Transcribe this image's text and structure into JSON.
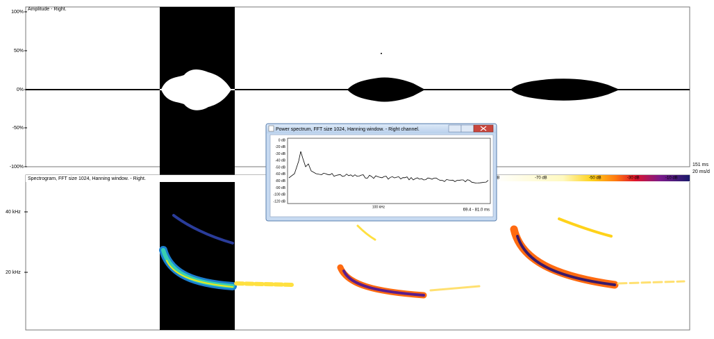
{
  "amplitude_panel": {
    "title": "Amplitude - Right.",
    "y_labels": [
      "100%",
      "50%",
      "0%",
      "-50%",
      "-100%"
    ]
  },
  "time_labels": [
    "151 ms",
    "20 ms/d"
  ],
  "spectrogram_panel": {
    "title": "Spectrogram, FFT size 1024, Hanning window. - Right.",
    "y_labels": [
      "40 kHz",
      "20 kHz"
    ],
    "color_scale_labels": [
      "dB",
      "-70 dB",
      "-50 dB",
      "-30 dB",
      "-10 dB"
    ]
  },
  "power_spectrum_window": {
    "title": "Power spectrum, FFT size 1024, Hanning window. - Right channel.",
    "y_labels": [
      "0 dB",
      "-20 dB",
      "-30 dB",
      "-40 dB",
      "-50 dB",
      "-60 dB",
      "-80 dB",
      "-90 dB",
      "-100 dB",
      "-120 dB"
    ],
    "x_label": "100 kHz",
    "range_label": "69.4 - 81.0 ms"
  }
}
